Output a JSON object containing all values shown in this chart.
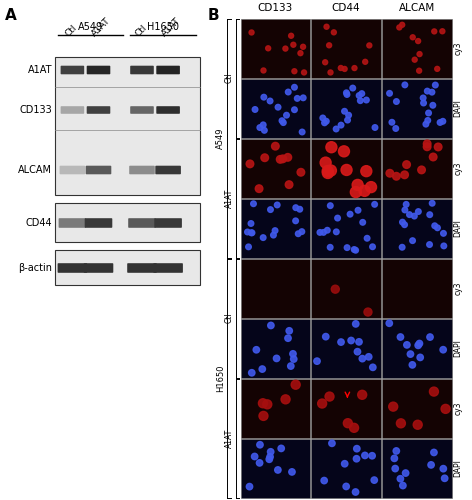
{
  "title_A": "A",
  "title_B": "B",
  "panel_A": {
    "group_labels": [
      "A549",
      "H1650"
    ],
    "col_labels": [
      "Ctl",
      "A1AT",
      "Ctl",
      "A1AT"
    ],
    "row_labels": [
      "A1AT",
      "CD133",
      "ALCAM",
      "CD44",
      "β-actin"
    ],
    "wb_bg_light": "#e8e8e8",
    "wb_bg_dark": "#c0c0c0",
    "border_color": "#444444",
    "band_dark": "#1a1a1a",
    "band_med": "#555555",
    "band_light": "#999999"
  },
  "panel_B": {
    "col_headers": [
      "CD133",
      "CD44",
      "ALCAM"
    ],
    "stain_labels": [
      "cy3",
      "DAPI",
      "cy3",
      "DAPI",
      "cy3",
      "DAPI",
      "cy3",
      "DAPI"
    ],
    "row_labels_inner": [
      "Ctl",
      "A1AT",
      "Ctl",
      "A1AT"
    ],
    "section_labels": [
      "A549",
      "H1650"
    ]
  },
  "figure_bg": "#ffffff"
}
